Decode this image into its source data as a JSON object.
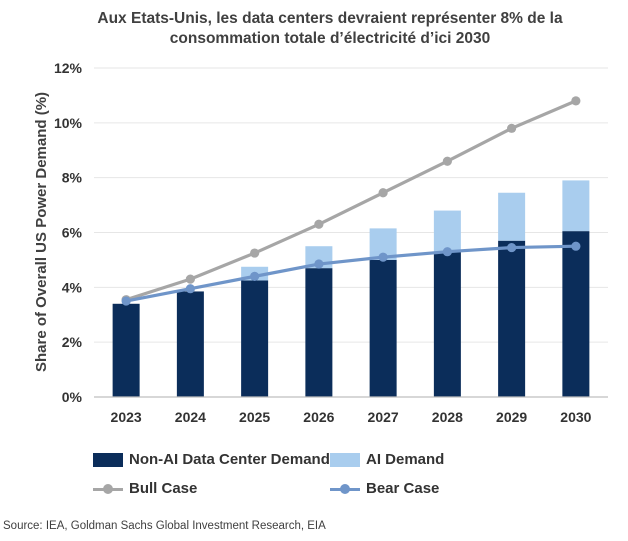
{
  "title_lines": [
    "Aux Etats-Unis, les data centers devraient représenter 8% de la",
    "consommation totale d’électricité d’ici 2030"
  ],
  "source": "Source: IEA, Goldman Sachs Global Investment Research, EIA",
  "colors": {
    "non_ai": "#0b2d5a",
    "ai": "#a9cdee",
    "bull": "#a6a6a6",
    "bear": "#6f95c9",
    "grid": "#e6e6e6",
    "text": "#333333"
  },
  "chart_data": {
    "type": "bar",
    "title": "Aux Etats-Unis, les data centers devraient représenter 8% de la consommation totale d’électricité d’ici 2030",
    "xlabel": "",
    "ylabel": "Share of Overall US Power Demand (%)",
    "categories": [
      "2023",
      "2024",
      "2025",
      "2026",
      "2027",
      "2028",
      "2029",
      "2030"
    ],
    "ylim": [
      0,
      12
    ],
    "yticks": [
      0,
      2,
      4,
      6,
      8,
      10,
      12
    ],
    "ytick_labels": [
      "0%",
      "2%",
      "4%",
      "6%",
      "8%",
      "10%",
      "12%"
    ],
    "grid": true,
    "legend_position": "bottom",
    "stacked_series": [
      {
        "name": "Non-AI Data Center Demand",
        "values": [
          3.4,
          3.85,
          4.25,
          4.7,
          5.0,
          5.3,
          5.7,
          6.05
        ]
      },
      {
        "name": "AI Demand",
        "values": [
          0.0,
          0.0,
          0.5,
          0.8,
          1.15,
          1.5,
          1.75,
          1.85
        ]
      }
    ],
    "line_series": [
      {
        "name": "Bull Case",
        "values": [
          3.55,
          4.3,
          5.25,
          6.3,
          7.45,
          8.6,
          9.8,
          10.8
        ]
      },
      {
        "name": "Bear Case",
        "values": [
          3.5,
          3.95,
          4.4,
          4.85,
          5.1,
          5.3,
          5.45,
          5.5
        ]
      }
    ]
  }
}
